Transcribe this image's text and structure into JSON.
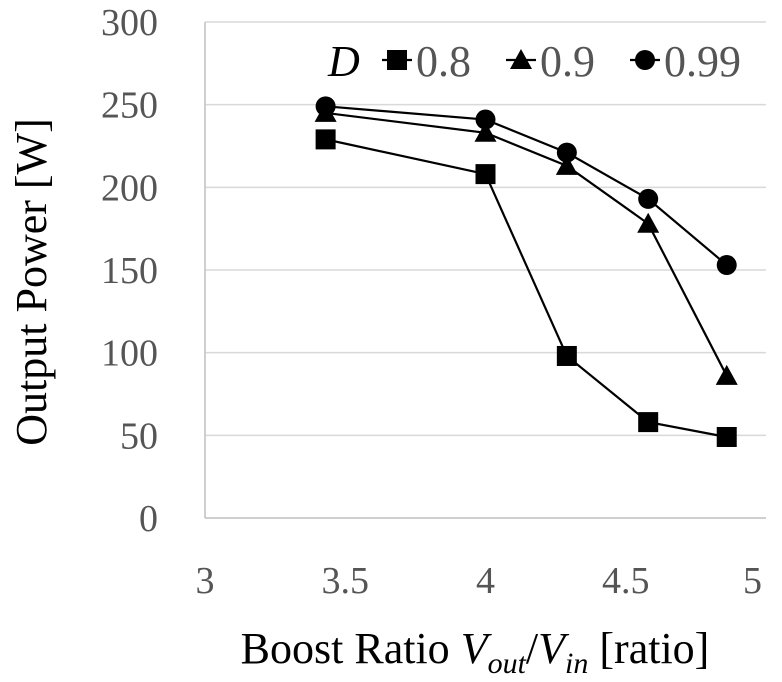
{
  "chart_data": {
    "type": "line",
    "xlabel_parts": [
      {
        "text": "Boost Ratio ",
        "style": "normal"
      },
      {
        "text": "V",
        "style": "italic"
      },
      {
        "text": "out",
        "style": "italic-sub"
      },
      {
        "text": "/",
        "style": "normal"
      },
      {
        "text": "V",
        "style": "italic"
      },
      {
        "text": "in",
        "style": "italic-sub"
      },
      {
        "text": " [ratio]",
        "style": "normal"
      }
    ],
    "ylabel": "Output Power [W]",
    "xlim": [
      3,
      5
    ],
    "ylim": [
      0,
      300
    ],
    "xticks": [
      "3",
      "3.5",
      "4",
      "4.5",
      "5"
    ],
    "yticks": [
      "0",
      "50",
      "100",
      "150",
      "200",
      "250",
      "300"
    ],
    "grid": "horizontal",
    "legend": {
      "title": "D",
      "placement": "top-right"
    },
    "series": [
      {
        "name": "0.8",
        "marker": "square",
        "x": [
          3.43,
          4.0,
          4.29,
          4.58,
          4.86
        ],
        "y": [
          229,
          208,
          98,
          58,
          49
        ]
      },
      {
        "name": "0.9",
        "marker": "triangle",
        "x": [
          3.43,
          4.0,
          4.29,
          4.58,
          4.86
        ],
        "y": [
          245,
          233,
          213,
          178,
          86
        ]
      },
      {
        "name": "0.99",
        "marker": "circle",
        "x": [
          3.43,
          4.0,
          4.29,
          4.58,
          4.86
        ],
        "y": [
          249,
          241,
          221,
          193,
          153
        ]
      }
    ],
    "colors": {
      "line": "#000000",
      "marker": "#000000",
      "grid": "#d9d9d9",
      "axis": "#bfbfbf",
      "tick_text": "#555555"
    }
  }
}
